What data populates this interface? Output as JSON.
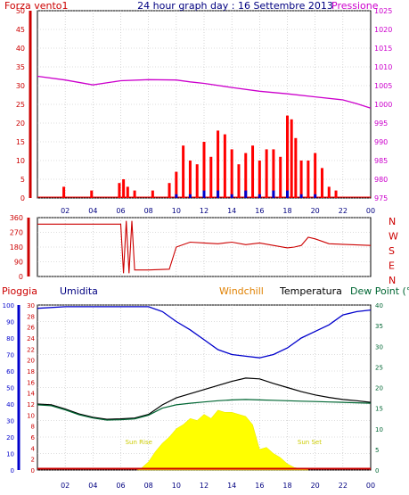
{
  "chart_data": [
    {
      "type": "line",
      "title": "24 hour graph day : 16 Settembre 2013",
      "left_label": "Forza vento1",
      "right_label": "Pressione",
      "x_ticks": [
        "02",
        "04",
        "06",
        "08",
        "10",
        "12",
        "14",
        "16",
        "18",
        "20",
        "22",
        "00"
      ],
      "y_left_ticks": [
        "50",
        "45",
        "40",
        "35",
        "30",
        "25",
        "20",
        "15",
        "10",
        "5",
        "0"
      ],
      "y_right_ticks": [
        "1025",
        "1020",
        "1015",
        "1010",
        "1005",
        "1000",
        "995",
        "990",
        "985",
        "980",
        "975"
      ],
      "ylim_left": [
        0,
        50
      ],
      "ylim_right": [
        975,
        1025
      ],
      "series": [
        {
          "color": "#cc00cc",
          "x": [
            0,
            2,
            4,
            6,
            8,
            10,
            11,
            12,
            14,
            16,
            18,
            20,
            22,
            23,
            24
          ],
          "y": [
            1007.5,
            1006.5,
            1005.2,
            1006.3,
            1006.6,
            1006.5,
            1006.0,
            1005.6,
            1004.5,
            1003.5,
            1002.8,
            1002.0,
            1001.2,
            1000.2,
            999.0
          ]
        },
        {
          "color": "#ff0000",
          "style": "bars",
          "x": [
            1.9,
            3.9,
            5.9,
            6.2,
            6.5,
            7.0,
            8.3,
            9.5,
            10.0,
            10.5,
            11.0,
            11.5,
            12.0,
            12.5,
            13.0,
            13.5,
            14.0,
            14.5,
            15.0,
            15.5,
            16.0,
            16.5,
            17.0,
            17.5,
            18.0,
            18.3,
            18.6,
            19.0,
            19.5,
            20.0,
            20.5,
            21.0,
            21.5
          ],
          "y": [
            3,
            2,
            4,
            5,
            3,
            2,
            2,
            4,
            7,
            14,
            10,
            9,
            15,
            11,
            18,
            17,
            13,
            9,
            12,
            14,
            10,
            13,
            13,
            11,
            22,
            21,
            16,
            10,
            10,
            12,
            8,
            3,
            2
          ]
        },
        {
          "color": "#0000cc",
          "style": "bars",
          "x": [
            10.0,
            11.0,
            12.0,
            13.0,
            14.0,
            15.0,
            16.0,
            17.0,
            18.0,
            19.0,
            20.0
          ],
          "y": [
            1,
            1,
            2,
            2,
            1,
            2,
            1,
            2,
            2,
            1,
            1
          ]
        }
      ]
    },
    {
      "type": "line",
      "title": "",
      "right_labels": [
        "N",
        "W",
        "S",
        "E",
        "N"
      ],
      "x_ticks": [
        "02",
        "04",
        "06",
        "08",
        "10",
        "12",
        "14",
        "16",
        "18",
        "20",
        "22",
        "00"
      ],
      "y_ticks": [
        "360",
        "270",
        "180",
        "90",
        "0"
      ],
      "ylim": [
        0,
        360
      ],
      "series": [
        {
          "color": "#cc0000",
          "x": [
            0,
            6.0,
            6.2,
            6.4,
            6.6,
            6.8,
            7.0,
            8.0,
            9.5,
            10.0,
            11.0,
            12.0,
            13.0,
            14.0,
            15.0,
            16.0,
            17.0,
            18.0,
            18.5,
            19.0,
            19.5,
            20.0,
            21.0,
            24
          ],
          "y": [
            320,
            320,
            20,
            340,
            20,
            340,
            40,
            40,
            45,
            180,
            210,
            205,
            200,
            210,
            195,
            205,
            190,
            175,
            180,
            190,
            240,
            230,
            200,
            190
          ]
        }
      ]
    },
    {
      "type": "line",
      "title": "",
      "legend": [
        "Pioggia",
        "Umidita",
        "Windchill",
        "Temperatura",
        "Dew Point (°C"
      ],
      "x_ticks": [
        "02",
        "04",
        "06",
        "08",
        "10",
        "12",
        "14",
        "16",
        "18",
        "20",
        "22",
        "00"
      ],
      "y_left_outer_ticks": [
        "100",
        "90",
        "80",
        "70",
        "60",
        "50",
        "40",
        "30",
        "20",
        "10",
        "0"
      ],
      "y_left_inner_ticks": [
        "30",
        "28",
        "26",
        "24",
        "22",
        "20",
        "18",
        "16",
        "14",
        "12",
        "10",
        "8",
        "6",
        "4",
        "2",
        "0"
      ],
      "y_right_ticks": [
        "40",
        "35",
        "30",
        "25",
        "20",
        "15",
        "10",
        "5",
        "0"
      ],
      "ylim_left_outer": [
        0,
        100
      ],
      "ylim_left_inner": [
        0,
        30
      ],
      "ylim_right": [
        0,
        40
      ],
      "annotations": [
        {
          "text": "Sun Rise",
          "x": 7.3
        },
        {
          "text": "Sun Set",
          "x": 19.6
        }
      ],
      "series": [
        {
          "name": "Umidita",
          "color": "#0000cc",
          "x": [
            0,
            2,
            4,
            6,
            7.5,
            8.0,
            9.0,
            10.0,
            11.0,
            12.0,
            13.0,
            14.0,
            15.0,
            16.0,
            17.0,
            18.0,
            19.0,
            20.0,
            21.0,
            22.0,
            23.0,
            24
          ],
          "y": [
            98,
            99,
            99,
            99,
            99,
            99,
            96,
            90,
            85,
            79,
            73,
            70,
            69,
            68,
            70,
            74,
            80,
            84,
            88,
            94,
            96,
            97
          ]
        },
        {
          "name": "Temperatura",
          "color": "#000000",
          "x": [
            0,
            1,
            2,
            3,
            4,
            5,
            6,
            7,
            8,
            9,
            10,
            11,
            12,
            13,
            14,
            15,
            16,
            17,
            18,
            19,
            20,
            21,
            22,
            23,
            24
          ],
          "y": [
            16.0,
            15.8,
            14.8,
            13.6,
            12.8,
            12.3,
            12.4,
            12.6,
            13.5,
            15.8,
            17.5,
            18.5,
            19.5,
            20.5,
            21.5,
            22.3,
            22.1,
            21.0,
            20.0,
            19.0,
            18.2,
            17.6,
            17.1,
            16.8,
            16.4
          ]
        },
        {
          "name": "Dew Point",
          "color": "#006633",
          "x": [
            0,
            1,
            2,
            3,
            4,
            5,
            6,
            7,
            8,
            9,
            10,
            11,
            12,
            13,
            14,
            15,
            16,
            17,
            18,
            19,
            20,
            21,
            22,
            23,
            24
          ],
          "y": [
            15.8,
            15.6,
            14.6,
            13.4,
            12.6,
            12.1,
            12.2,
            12.4,
            13.3,
            15.0,
            15.8,
            16.2,
            16.5,
            16.8,
            17.0,
            17.1,
            17.0,
            16.9,
            16.8,
            16.7,
            16.6,
            16.5,
            16.4,
            16.3,
            16.2
          ]
        },
        {
          "name": "Pioggia",
          "color": "#cc0000",
          "x": [
            0,
            24
          ],
          "y": [
            0.3,
            0.3
          ]
        },
        {
          "name": "solar",
          "color": "#ffff00",
          "style": "area",
          "x": [
            7.2,
            7.5,
            8.0,
            8.5,
            9.0,
            9.5,
            10.0,
            10.5,
            11.0,
            11.5,
            12.0,
            12.5,
            13.0,
            13.5,
            14.0,
            14.5,
            15.0,
            15.5,
            16.0,
            16.5,
            17.0,
            17.5,
            18.0,
            18.5,
            19.0,
            19.5
          ],
          "y": [
            0,
            0.5,
            2.0,
            4.5,
            6.5,
            8.0,
            10.0,
            11.0,
            12.5,
            12.0,
            13.5,
            12.5,
            14.5,
            14.0,
            14.0,
            13.5,
            13.0,
            11.0,
            5.0,
            5.5,
            4.0,
            3.0,
            1.5,
            0.6,
            0.3,
            0
          ]
        }
      ]
    }
  ]
}
